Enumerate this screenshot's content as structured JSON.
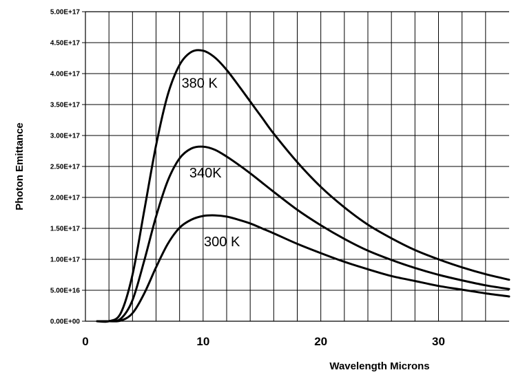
{
  "chart_data": {
    "type": "line",
    "title": "",
    "xlabel": "Wavelength Microns",
    "ylabel": "Photon Emittance",
    "xlim": [
      0,
      36
    ],
    "ylim": [
      0,
      5e+17
    ],
    "grid": true,
    "x_tick_values": [
      0,
      10,
      20,
      30
    ],
    "x_tick_labels": [
      "0",
      "10",
      "20",
      "30"
    ],
    "y_tick_values": [
      0,
      5e+16,
      1e+17,
      1.5e+17,
      2e+17,
      2.5e+17,
      3e+17,
      3.5e+17,
      4e+17,
      4.5e+17,
      5e+17
    ],
    "y_tick_labels": [
      "0.00E+00",
      "5.00E+16",
      "1.00E+17",
      "1.50E+17",
      "2.00E+17",
      "2.50E+17",
      "3.00E+17",
      "3.50E+17",
      "4.00E+17",
      "4.50E+17",
      "5.00E+17"
    ],
    "x": [
      1,
      2,
      3,
      4,
      5,
      6,
      7,
      8,
      9,
      10,
      11,
      12,
      13,
      14,
      15,
      16,
      18,
      20,
      22,
      24,
      26,
      28,
      30,
      32,
      34,
      36
    ],
    "series": [
      {
        "name": "380 K",
        "values": [
          0,
          20000000000000.0,
          1.3e+16,
          7.5e+16,
          1.79e+17,
          2.84e+17,
          3.66e+17,
          4.14e+17,
          4.35e+17,
          4.37e+17,
          4.26e+17,
          4.06e+17,
          3.81e+17,
          3.55e+17,
          3.29e+17,
          3.03e+17,
          2.57e+17,
          2.17e+17,
          1.84e+17,
          1.56e+17,
          1.34e+17,
          1.15e+17,
          1e+17,
          8.7e+16,
          7.6e+16,
          6.7e+16
        ]
      },
      {
        "name": "340K",
        "values": [
          0,
          0,
          4000000000000000.0,
          3.4e+16,
          9.8e+16,
          1.69e+17,
          2.27e+17,
          2.63e+17,
          2.79e+17,
          2.82e+17,
          2.77e+17,
          2.66e+17,
          2.53e+17,
          2.39e+17,
          2.24e+17,
          2.09e+17,
          1.8e+17,
          1.55e+17,
          1.33e+17,
          1.14e+17,
          9.9e+16,
          8.6e+16,
          7.5e+16,
          6.6e+16,
          5.8e+16,
          5.2e+16
        ]
      },
      {
        "name": "300 K",
        "values": [
          0,
          0,
          1000000000000000.0,
          1.3e+16,
          4.5e+16,
          8.7e+16,
          1.25e+17,
          1.51e+17,
          1.64e+17,
          1.7e+17,
          1.71e+17,
          1.69e+17,
          1.64e+17,
          1.58e+17,
          1.5e+17,
          1.42e+17,
          1.25e+17,
          1.1e+17,
          9.6e+16,
          8.4e+16,
          7.3e+16,
          6.5e+16,
          5.7e+16,
          5.1e+16,
          4.5e+16,
          4e+16
        ]
      }
    ],
    "annotations": [
      {
        "text": "380 K",
        "series": "380 K"
      },
      {
        "text": "340K",
        "series": "340K"
      },
      {
        "text": "300 K",
        "series": "300 K"
      }
    ]
  }
}
